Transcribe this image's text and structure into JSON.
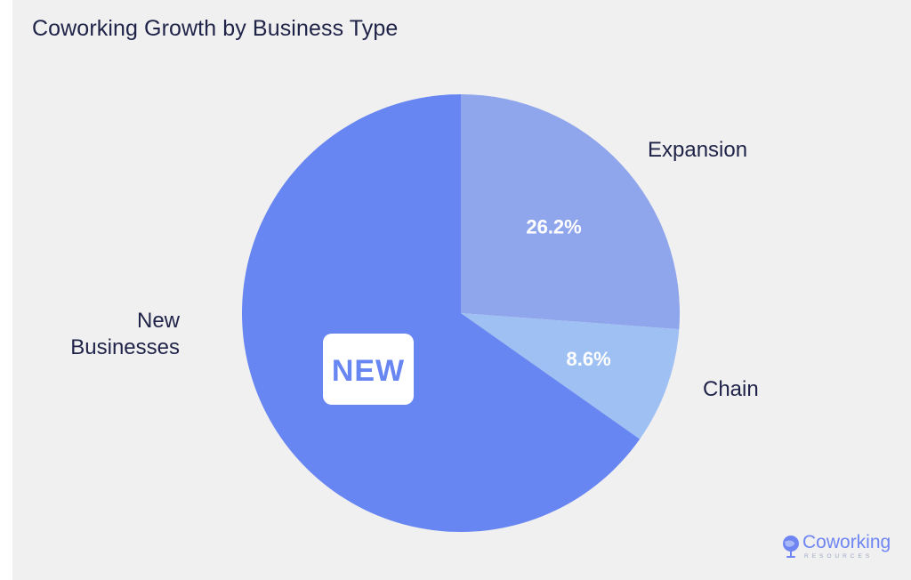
{
  "chart_data": {
    "type": "pie",
    "title": "Coworking Growth by Business Type",
    "slices": [
      {
        "label": "Expansion",
        "value": 26.2,
        "value_label": "26.2%",
        "color": "#8fa5ec"
      },
      {
        "label": "Chain",
        "value": 8.6,
        "value_label": "8.6%",
        "color": "#9fc0f3"
      },
      {
        "label": "New Businesses",
        "value": 65.3,
        "value_label": "65.3%",
        "color": "#6886f2"
      }
    ],
    "badge": {
      "text": "NEW"
    },
    "start_angle": "12 o'clock",
    "direction": "clockwise"
  },
  "branding": {
    "name": "Coworking",
    "tagline": "RESOURCES",
    "accent_color": "#6f86f2",
    "icon": "globe-icon"
  }
}
